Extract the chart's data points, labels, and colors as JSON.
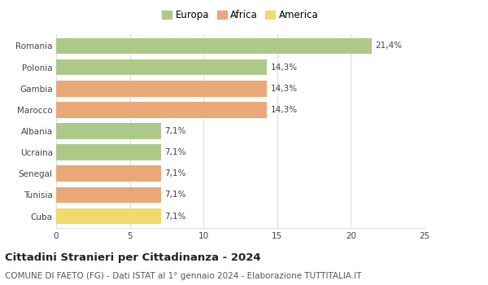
{
  "countries": [
    "Romania",
    "Polonia",
    "Gambia",
    "Marocco",
    "Albania",
    "Ucraina",
    "Senegal",
    "Tunisia",
    "Cuba"
  ],
  "values": [
    21.4,
    14.3,
    14.3,
    14.3,
    7.1,
    7.1,
    7.1,
    7.1,
    7.1
  ],
  "labels": [
    "21,4%",
    "14,3%",
    "14,3%",
    "14,3%",
    "7,1%",
    "7,1%",
    "7,1%",
    "7,1%",
    "7,1%"
  ],
  "colors": [
    "#adc98a",
    "#adc98a",
    "#e8a878",
    "#e8a878",
    "#adc98a",
    "#adc98a",
    "#e8a878",
    "#e8a878",
    "#f2d96b"
  ],
  "legend_labels": [
    "Europa",
    "Africa",
    "America"
  ],
  "legend_colors": [
    "#adc98a",
    "#e8a878",
    "#f2d96b"
  ],
  "title": "Cittadini Stranieri per Cittadinanza - 2024",
  "subtitle": "COMUNE DI FAETO (FG) - Dati ISTAT al 1° gennaio 2024 - Elaborazione TUTTITALIA.IT",
  "xlim": [
    0,
    25
  ],
  "xticks": [
    0,
    5,
    10,
    15,
    20,
    25
  ],
  "background_color": "#ffffff",
  "grid_color": "#e0e0e0",
  "bar_height": 0.75,
  "title_fontsize": 9.5,
  "subtitle_fontsize": 7.5,
  "label_fontsize": 7.5,
  "tick_fontsize": 7.5,
  "legend_fontsize": 8.5
}
